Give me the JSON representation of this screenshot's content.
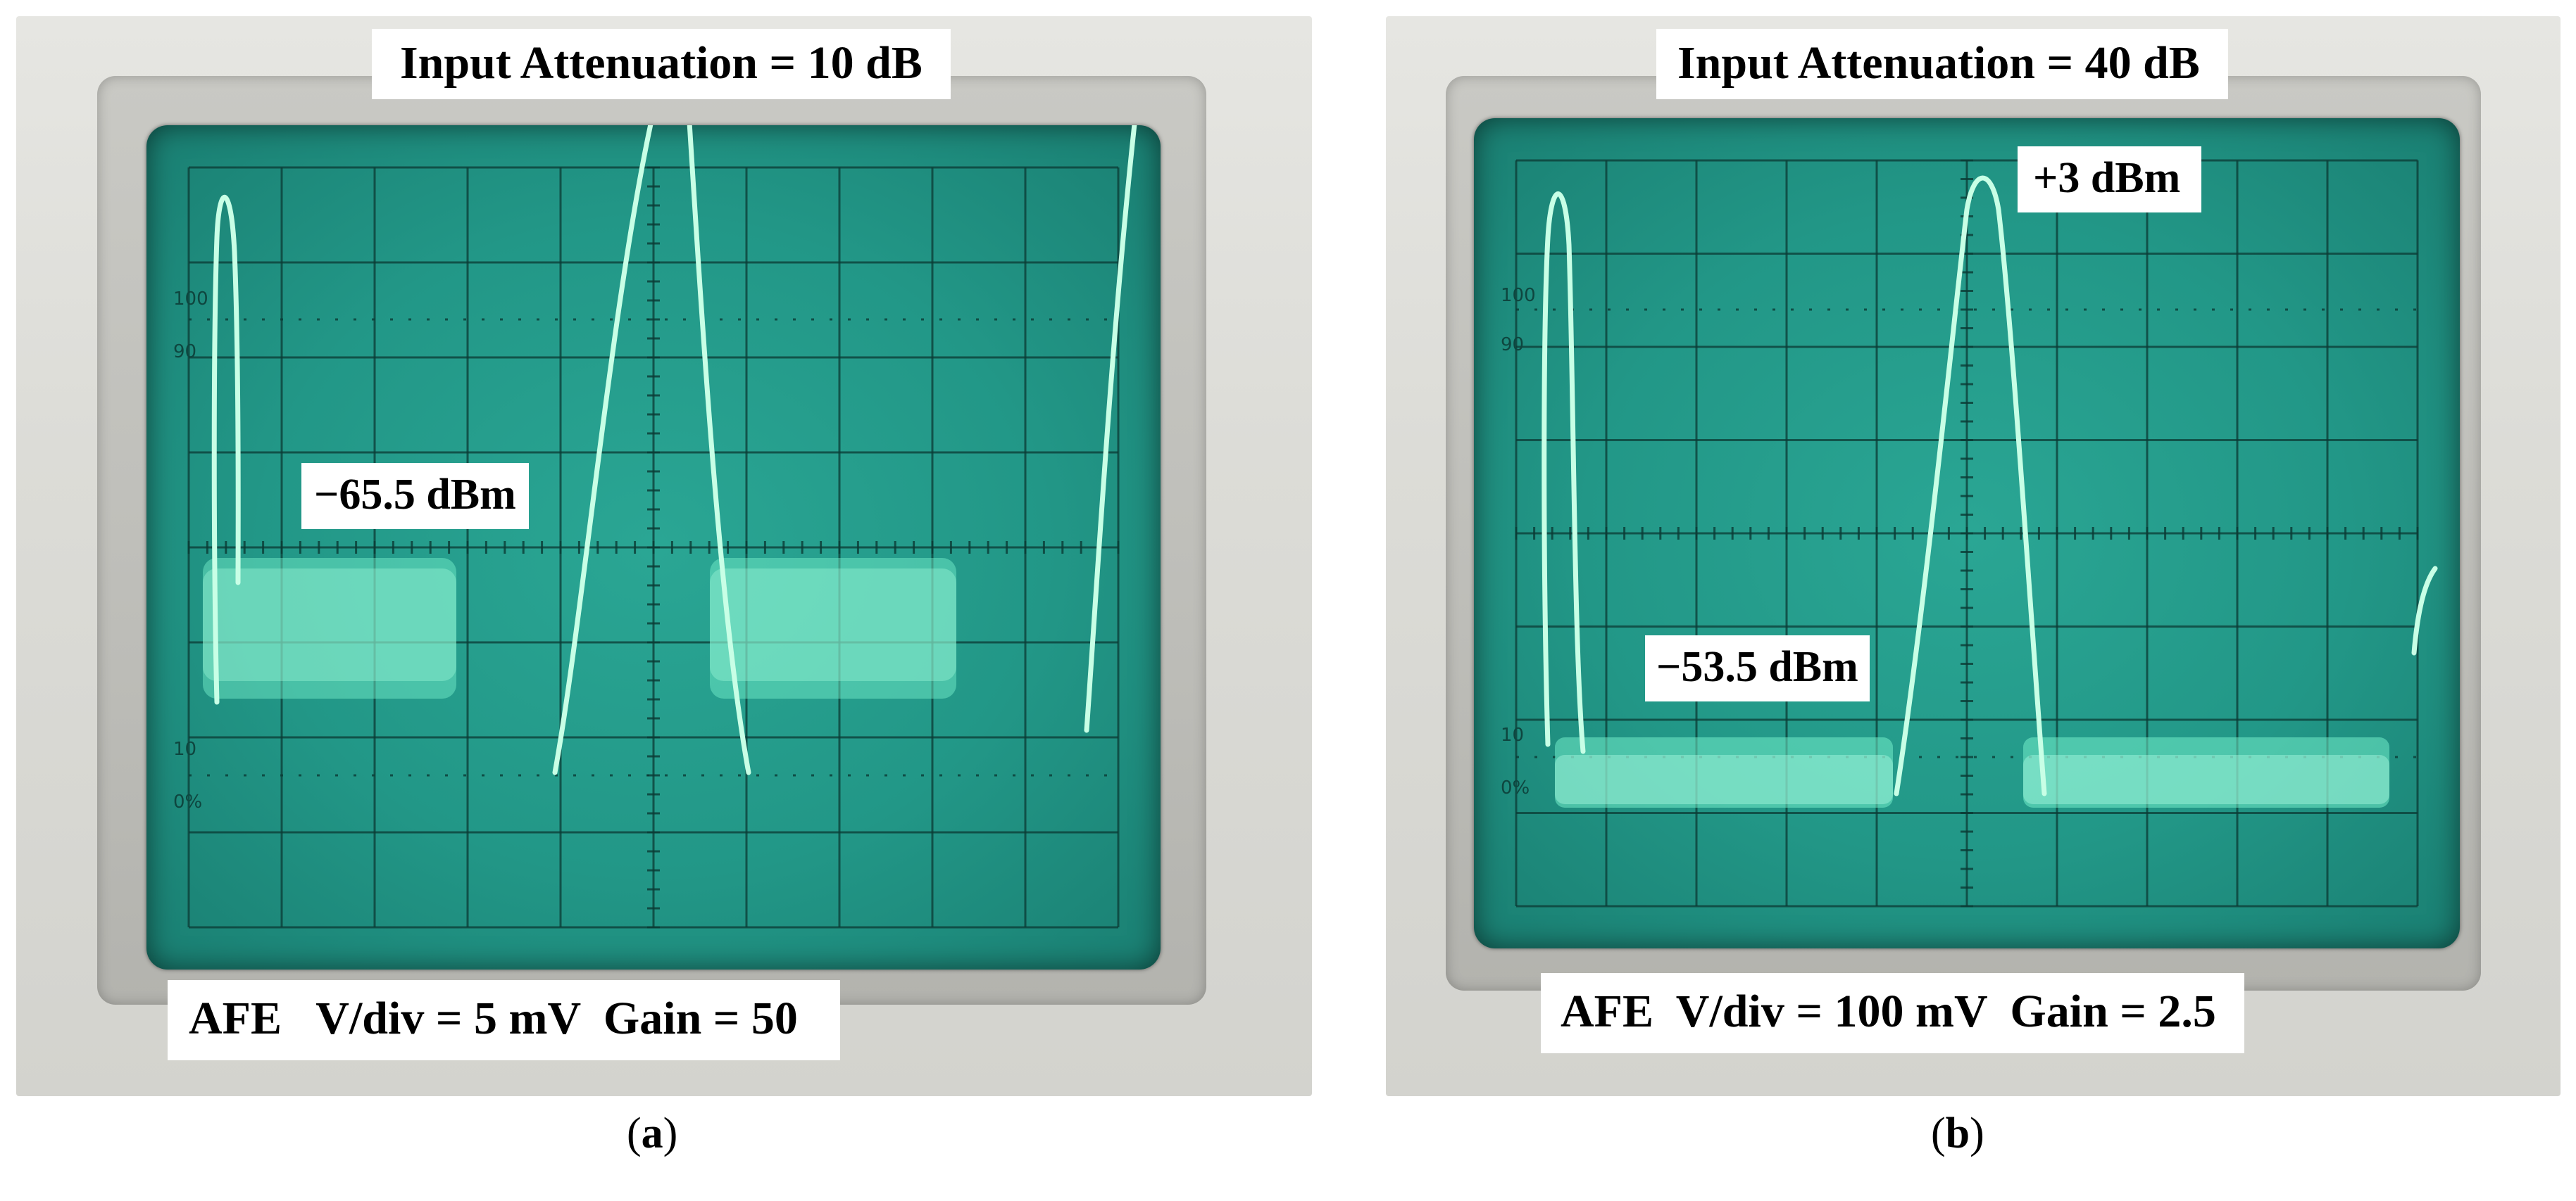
{
  "panels": [
    {
      "id": "a",
      "header": "Input Attenuation = 10 dB",
      "footer": "AFE   V/div = 5 mV  Gain = 50",
      "annotations": [
        "−65.5 dBm"
      ],
      "graticule_labels": [
        "100",
        "90",
        "10",
        "0%"
      ],
      "caption": "(a)"
    },
    {
      "id": "b",
      "header": "Input Attenuation = 40 dB",
      "footer": "AFE  V/div = 100 mV  Gain = 2.5",
      "annotations": [
        "+3 dBm",
        "−53.5 dBm"
      ],
      "graticule_labels": [
        "100",
        "90",
        "10",
        "0%"
      ],
      "caption": "(b)"
    }
  ],
  "colors": {
    "screen": "#229787",
    "trace": "#c8ffe6",
    "grid": "#0b3b35"
  }
}
